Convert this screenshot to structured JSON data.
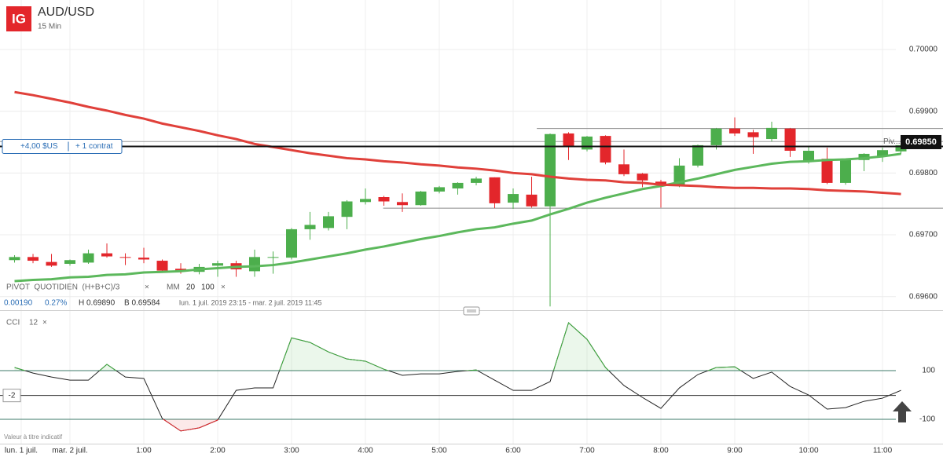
{
  "header": {
    "logo": "IG",
    "symbol": "AUD/USD",
    "interval": "15 Min"
  },
  "indicators": {
    "pivot": "PIVOT  QUOTIDIEN  (H+B+C)/3",
    "pivot_close": "×",
    "ma": "MM",
    "ma_close": "×",
    "change": "0.00190",
    "change_pct": "0.27%",
    "high": "H 0.69890",
    "low": "B 0.69584",
    "range": "lun. 1 juil. 2019 23:15 - mar. 2 juil. 2019 11:45",
    "cci": "CCI",
    "cci_period": "12",
    "cci_close": "×",
    "note": "Valeur à titre indicatif"
  },
  "chart_data": [
    {
      "type": "candlestick",
      "up_color": "#4cae4c",
      "down_color": "#e3262b",
      "x": [
        -0.75,
        -0.5,
        -0.25,
        0,
        0.25,
        0.5,
        0.75,
        1,
        1.25,
        1.5,
        1.75,
        2,
        2.25,
        2.5,
        2.75,
        3,
        3.25,
        3.5,
        3.75,
        4,
        4.25,
        4.5,
        4.75,
        5,
        5.25,
        5.5,
        5.75,
        6,
        6.25,
        6.5,
        6.75,
        7,
        7.25,
        7.5,
        7.75,
        8,
        8.25,
        8.5,
        8.75,
        9,
        9.25,
        9.5,
        9.75,
        10,
        10.25,
        10.5,
        10.75,
        11,
        11.25
      ],
      "open": [
        0.69659,
        0.69664,
        0.69656,
        0.69653,
        0.69655,
        0.6967,
        0.69664,
        0.69663,
        0.69658,
        0.69645,
        0.6964,
        0.6965,
        0.69654,
        0.69641,
        0.69663,
        0.69663,
        0.69709,
        0.69711,
        0.69729,
        0.69753,
        0.69761,
        0.69753,
        0.69748,
        0.6977,
        0.69775,
        0.69784,
        0.69793,
        0.69752,
        0.69765,
        0.69746,
        0.69864,
        0.69838,
        0.6986,
        0.69814,
        0.69799,
        0.69786,
        0.6978,
        0.69812,
        0.69845,
        0.69872,
        0.69866,
        0.69855,
        0.69872,
        0.69819,
        0.69823,
        0.69784,
        0.69821,
        0.69827,
        0.69835
      ],
      "high": [
        0.69667,
        0.69669,
        0.69669,
        0.6966,
        0.69676,
        0.69686,
        0.6967,
        0.69679,
        0.6966,
        0.69654,
        0.69653,
        0.69658,
        0.69658,
        0.69676,
        0.69673,
        0.69711,
        0.69737,
        0.69737,
        0.69756,
        0.69775,
        0.69763,
        0.69767,
        0.69771,
        0.69779,
        0.69785,
        0.69794,
        0.69793,
        0.69775,
        0.69794,
        0.69864,
        0.69866,
        0.6986,
        0.69861,
        0.69838,
        0.698,
        0.69789,
        0.69824,
        0.69846,
        0.69873,
        0.6989,
        0.6987,
        0.69883,
        0.69873,
        0.69842,
        0.69841,
        0.69821,
        0.69832,
        0.69841,
        0.69846
      ],
      "low": [
        0.69655,
        0.69654,
        0.69648,
        0.6965,
        0.69653,
        0.69663,
        0.69651,
        0.69654,
        0.6964,
        0.69637,
        0.69636,
        0.69632,
        0.69632,
        0.69632,
        0.69637,
        0.6966,
        0.69692,
        0.69707,
        0.69709,
        0.69749,
        0.69747,
        0.69737,
        0.69747,
        0.69767,
        0.69765,
        0.6978,
        0.69743,
        0.69742,
        0.69744,
        0.69584,
        0.69821,
        0.69835,
        0.69814,
        0.69795,
        0.69777,
        0.69744,
        0.69777,
        0.69809,
        0.69838,
        0.6986,
        0.69831,
        0.69851,
        0.69826,
        0.69815,
        0.69782,
        0.69781,
        0.69803,
        0.69818,
        0.69831
      ],
      "close": [
        0.69664,
        0.69658,
        0.6965,
        0.69659,
        0.6967,
        0.69665,
        0.69663,
        0.6966,
        0.69642,
        0.69641,
        0.69648,
        0.69654,
        0.69644,
        0.69664,
        0.69664,
        0.69709,
        0.69716,
        0.6973,
        0.69754,
        0.69758,
        0.69754,
        0.69748,
        0.6977,
        0.69777,
        0.69784,
        0.69791,
        0.69751,
        0.69766,
        0.69746,
        0.69863,
        0.69842,
        0.69859,
        0.69817,
        0.69798,
        0.69788,
        0.6978,
        0.69812,
        0.69845,
        0.69872,
        0.69864,
        0.69858,
        0.69873,
        0.69836,
        0.69836,
        0.69784,
        0.69821,
        0.69831,
        0.69837,
        0.69845
      ],
      "series": [
        {
          "name": "20",
          "color": "#5cb85c",
          "values": [
            0.69625,
            0.69627,
            0.69628,
            0.69631,
            0.69632,
            0.69635,
            0.69636,
            0.69639,
            0.6964,
            0.69641,
            0.69644,
            0.69646,
            0.69648,
            0.69649,
            0.69651,
            0.69655,
            0.6966,
            0.69665,
            0.6967,
            0.69676,
            0.69681,
            0.69687,
            0.69693,
            0.69698,
            0.69704,
            0.69709,
            0.69712,
            0.69718,
            0.69723,
            0.69733,
            0.69742,
            0.69752,
            0.6976,
            0.69767,
            0.69774,
            0.69779,
            0.69785,
            0.69791,
            0.69798,
            0.69805,
            0.6981,
            0.69815,
            0.69818,
            0.69819,
            0.69821,
            0.69822,
            0.69824,
            0.69827,
            0.69831
          ]
        },
        {
          "name": "100",
          "color": "#e0403a",
          "values": [
            0.69931,
            0.69926,
            0.6992,
            0.69914,
            0.69907,
            0.69901,
            0.69894,
            0.69888,
            0.6988,
            0.69874,
            0.69868,
            0.69861,
            0.69855,
            0.69847,
            0.69842,
            0.69837,
            0.69832,
            0.69828,
            0.69824,
            0.69822,
            0.69819,
            0.69817,
            0.69814,
            0.69812,
            0.69809,
            0.69807,
            0.69804,
            0.698,
            0.69798,
            0.69794,
            0.69791,
            0.69789,
            0.69788,
            0.69785,
            0.69784,
            0.69781,
            0.6978,
            0.69779,
            0.69777,
            0.69776,
            0.69776,
            0.69775,
            0.69775,
            0.69774,
            0.69772,
            0.69771,
            0.6977,
            0.69768,
            0.69766
          ]
        }
      ],
      "xlim": [
        -0.947,
        11.819
      ],
      "xticks": [
        {
          "value": -0.66,
          "label": "lun. 1 juil."
        },
        {
          "value": 0,
          "label": "mar. 2 juil."
        },
        {
          "value": 1,
          "label": "1:00"
        },
        {
          "value": 2,
          "label": "2:00"
        },
        {
          "value": 3,
          "label": "3:00"
        },
        {
          "value": 4,
          "label": "4:00"
        },
        {
          "value": 5,
          "label": "5:00"
        },
        {
          "value": 6,
          "label": "6:00"
        },
        {
          "value": 7,
          "label": "7:00"
        },
        {
          "value": 8,
          "label": "8:00"
        },
        {
          "value": 9,
          "label": "9:00"
        },
        {
          "value": 10,
          "label": "10:00"
        },
        {
          "value": 11,
          "label": "11:00"
        }
      ],
      "ylim": [
        0.69578,
        0.7008
      ],
      "yticks": [
        {
          "value": 0.7,
          "label": "0.70000"
        },
        {
          "value": 0.699,
          "label": "0.69900"
        },
        {
          "value": 0.698,
          "label": "0.69800"
        },
        {
          "value": 0.697,
          "label": "0.69700"
        },
        {
          "value": 0.696,
          "label": "0.69600"
        }
      ],
      "grid": true,
      "hlines": [
        {
          "value": 0.69872,
          "from": 6.32
        },
        {
          "value": 0.69743,
          "from": 4.24
        }
      ],
      "pivot": {
        "value": 0.69851,
        "label": "Piv..."
      },
      "position": {
        "value": 0.69843,
        "pnl": "+4,00 $US",
        "size": "+ 1 contrat"
      },
      "last": {
        "value": 0.6985,
        "label": "0.69850"
      }
    },
    {
      "type": "line",
      "color": "#222222",
      "over_color": "#3fae3f",
      "under_color": "#e3262b",
      "values": [
        113,
        90,
        74,
        61,
        61,
        126,
        74,
        68,
        -97,
        -148,
        -135,
        -103,
        19,
        29,
        29,
        235,
        216,
        177,
        148,
        139,
        106,
        81,
        87,
        87,
        97,
        103,
        61,
        19,
        19,
        55,
        297,
        229,
        113,
        39,
        -10,
        -55,
        29,
        84,
        113,
        116,
        68,
        94,
        35,
        0,
        -58,
        -52,
        -26,
        -13,
        19
      ],
      "ylim": [
        -200,
        339
      ],
      "yticks": [
        100,
        -100
      ],
      "cursor": {
        "value": -2,
        "label": "-2"
      }
    }
  ]
}
